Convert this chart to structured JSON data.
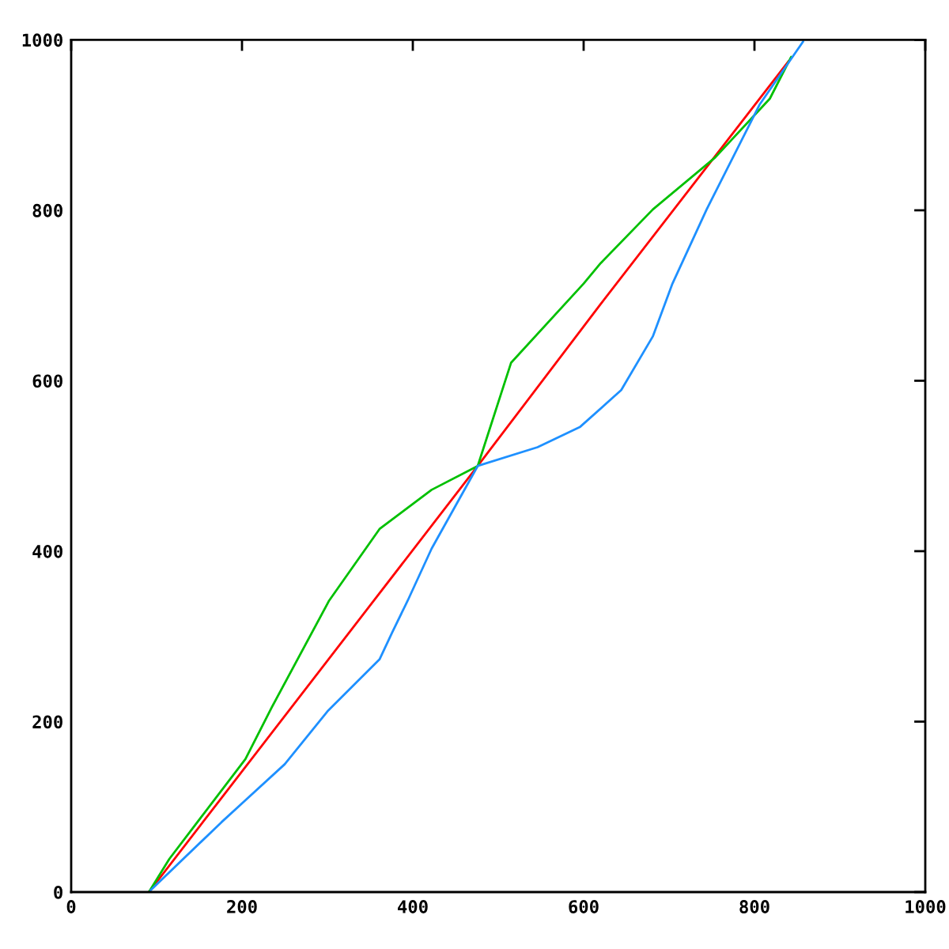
{
  "chart_data": {
    "type": "line",
    "xlim": [
      0,
      1000
    ],
    "ylim": [
      0,
      1000
    ],
    "xticks": [
      0,
      200,
      400,
      600,
      800,
      1000
    ],
    "yticks": [
      0,
      200,
      400,
      600,
      800,
      1000
    ],
    "grid": false,
    "legend": false,
    "marker": "none",
    "line_style": "solid",
    "series": [
      {
        "color": "#ff0000",
        "x": [
          91,
          476,
          620,
          840
        ],
        "values": [
          0,
          500,
          690,
          975
        ]
      },
      {
        "color": "#00c000",
        "x": [
          91,
          115,
          204,
          235,
          302,
          361,
          422,
          476,
          515,
          600,
          620,
          681,
          754,
          818,
          843
        ],
        "values": [
          0,
          39,
          156,
          217,
          342,
          426,
          472,
          500,
          621,
          714,
          738,
          801,
          862,
          931,
          980
        ]
      },
      {
        "color": "#1e90ff",
        "x": [
          93,
          176,
          250,
          300,
          361,
          376,
          394,
          422,
          476,
          546,
          596,
          644,
          681,
          704,
          744,
          806,
          857
        ],
        "values": [
          2,
          82,
          150,
          212,
          273,
          305,
          342,
          403,
          500,
          522,
          546,
          589,
          652,
          714,
          801,
          924,
          998
        ]
      }
    ]
  }
}
